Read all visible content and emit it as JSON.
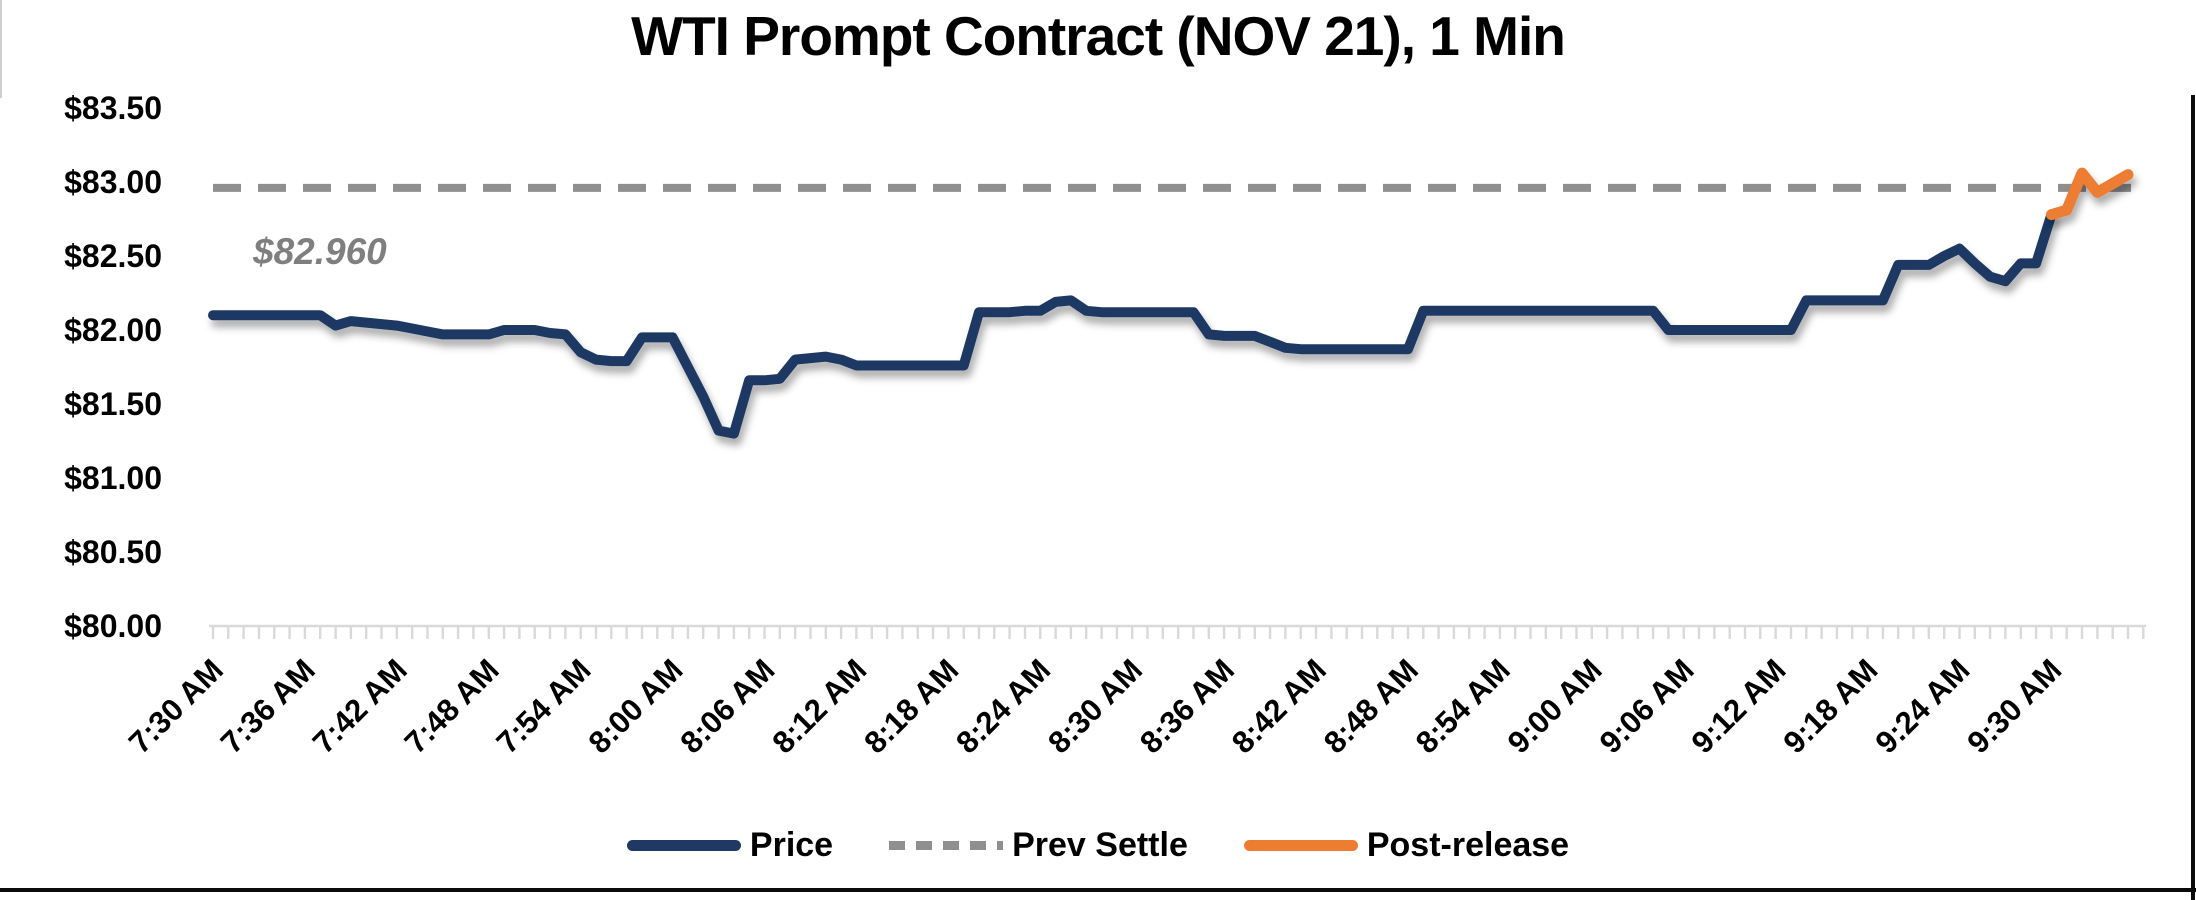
{
  "title": "WTI Prompt Contract (NOV 21), 1 Min",
  "annotation": {
    "label": "$82.960",
    "color": "#7f7f7f"
  },
  "legend": {
    "items": [
      {
        "label": "Price",
        "style": "solid",
        "color": "#1f3864"
      },
      {
        "label": "Prev Settle",
        "style": "dashed",
        "color": "#8f8f8f"
      },
      {
        "label": "Post-release",
        "style": "solid",
        "color": "#ed7d31"
      }
    ]
  },
  "y_axis": {
    "tick_labels": [
      "$83.50",
      "$83.00",
      "$82.50",
      "$82.00",
      "$81.50",
      "$81.00",
      "$80.50",
      "$80.00"
    ],
    "min": 80.0,
    "max": 83.5,
    "step": 0.5,
    "format": "USD"
  },
  "x_axis": {
    "tick_labels": [
      "7:30 AM",
      "7:36 AM",
      "7:42 AM",
      "7:48 AM",
      "7:54 AM",
      "8:00 AM",
      "8:06 AM",
      "8:12 AM",
      "8:18 AM",
      "8:24 AM",
      "8:30 AM",
      "8:36 AM",
      "8:42 AM",
      "8:48 AM",
      "8:54 AM",
      "9:00 AM",
      "9:06 AM",
      "9:12 AM",
      "9:18 AM",
      "9:24 AM",
      "9:30 AM"
    ],
    "label_every_minutes": 6,
    "minor_tick_minutes": 1
  },
  "chart_data": {
    "type": "line",
    "title": "WTI Prompt Contract (NOV 21), 1 Min",
    "xlabel": "",
    "ylabel": "",
    "x_start": "7:30 AM",
    "x_end": "9:35 AM",
    "x_interval_minutes": 1,
    "ylim": [
      80.0,
      83.5
    ],
    "grid": false,
    "legend_position": "bottom",
    "prev_settle": {
      "name": "Prev Settle",
      "value": 82.96,
      "annotation": "$82.960",
      "color": "#8f8f8f",
      "style": "dashed"
    },
    "series": [
      {
        "name": "Price",
        "color": "#1f3864",
        "start_minute_index": 0,
        "values": [
          82.1,
          82.1,
          82.1,
          82.1,
          82.1,
          82.1,
          82.1,
          82.1,
          82.03,
          82.06,
          82.05,
          82.04,
          82.03,
          82.01,
          81.99,
          81.97,
          81.97,
          81.97,
          81.97,
          82.0,
          82.0,
          82.0,
          81.98,
          81.97,
          81.85,
          81.8,
          81.79,
          81.79,
          81.95,
          81.95,
          81.95,
          81.75,
          81.55,
          81.32,
          81.3,
          81.66,
          81.66,
          81.67,
          81.8,
          81.81,
          81.82,
          81.8,
          81.76,
          81.76,
          81.76,
          81.76,
          81.76,
          81.76,
          81.76,
          81.76,
          82.12,
          82.12,
          82.12,
          82.13,
          82.13,
          82.19,
          82.2,
          82.13,
          82.12,
          82.12,
          82.12,
          82.12,
          82.12,
          82.12,
          82.12,
          81.97,
          81.96,
          81.96,
          81.96,
          81.92,
          81.88,
          81.87,
          81.87,
          81.87,
          81.87,
          81.87,
          81.87,
          81.87,
          81.87,
          82.13,
          82.13,
          82.13,
          82.13,
          82.13,
          82.13,
          82.13,
          82.13,
          82.13,
          82.13,
          82.13,
          82.13,
          82.13,
          82.13,
          82.13,
          82.13,
          82.0,
          82.0,
          82.0,
          82.0,
          82.0,
          82.0,
          82.0,
          82.0,
          82.0,
          82.2,
          82.2,
          82.2,
          82.2,
          82.2,
          82.2,
          82.44,
          82.44,
          82.44,
          82.5,
          82.55,
          82.45,
          82.36,
          82.33,
          82.45,
          82.45,
          82.78
        ]
      },
      {
        "name": "Post-release",
        "color": "#ed7d31",
        "start_minute_index": 120,
        "values": [
          82.78,
          82.81,
          83.06,
          82.93,
          82.99,
          83.05
        ]
      }
    ]
  }
}
